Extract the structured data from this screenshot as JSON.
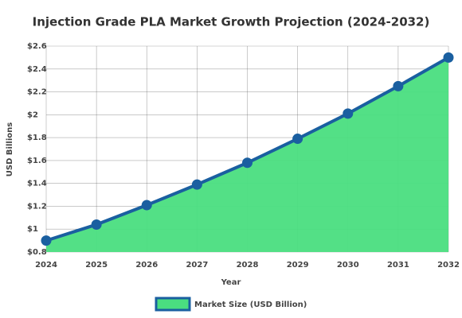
{
  "chart_data": {
    "type": "area",
    "title": "Injection Grade PLA Market Growth Projection (2024-2032)",
    "x_label": "Year",
    "y_label": "USD Billions",
    "categories": [
      "2024",
      "2025",
      "2026",
      "2027",
      "2028",
      "2029",
      "2030",
      "2031",
      "2032"
    ],
    "series": [
      {
        "name": "Market Size (USD Billion)",
        "color": "#1a5fa0",
        "fill": "#4ade80",
        "values": [
          0.9,
          1.04,
          1.21,
          1.39,
          1.58,
          1.79,
          2.01,
          2.25,
          2.5
        ]
      }
    ],
    "ylim": [
      0.8,
      2.6
    ],
    "yticks": [
      {
        "value": 0.8,
        "label": "$0.8"
      },
      {
        "value": 1,
        "label": "$1"
      },
      {
        "value": 1.2,
        "label": "$1.2"
      },
      {
        "value": 1.4,
        "label": "$1.4"
      },
      {
        "value": 1.6,
        "label": "$1.6"
      },
      {
        "value": 1.8,
        "label": "$1.8"
      },
      {
        "value": 2,
        "label": "$2"
      },
      {
        "value": 2.2,
        "label": "$2.2"
      },
      {
        "value": 2.4,
        "label": "$2.4"
      },
      {
        "value": 2.6,
        "label": "$2.6"
      }
    ],
    "grid": true
  }
}
